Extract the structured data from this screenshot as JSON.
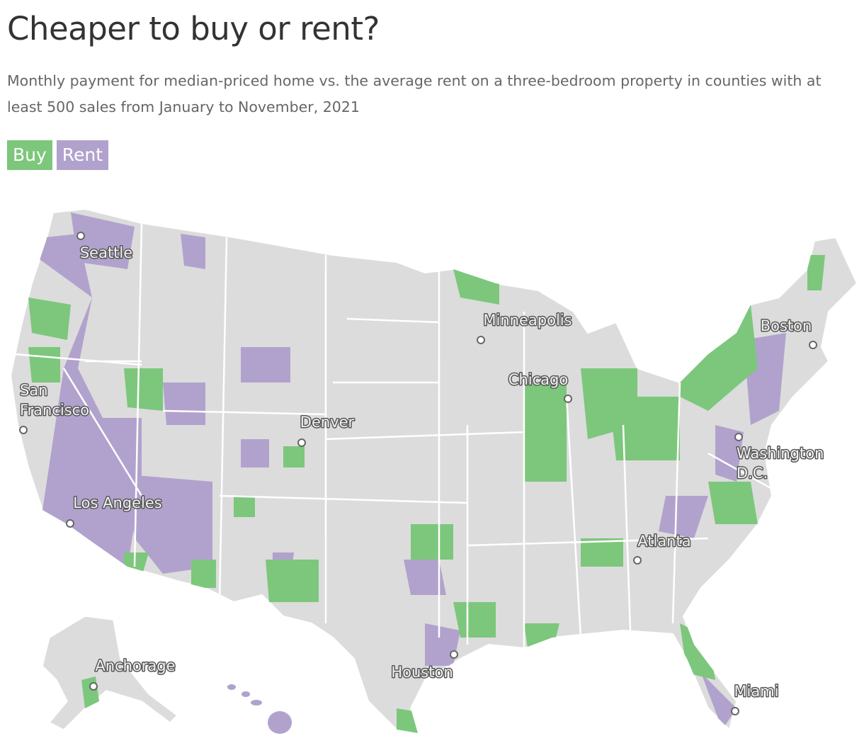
{
  "header": {
    "title": "Cheaper to buy or rent?",
    "subtitle": "Monthly payment for median-priced home vs. the average rent on a three-bedroom property in counties with at least 500 sales from January to November, 2021"
  },
  "legend": [
    {
      "label": "Buy",
      "color": "#7cc77c"
    },
    {
      "label": "Rent",
      "color": "#b1a2cd"
    }
  ],
  "cities": [
    {
      "lines": [
        "Seattle"
      ]
    },
    {
      "lines": [
        "Minneapolis"
      ]
    },
    {
      "lines": [
        "Boston"
      ]
    },
    {
      "lines": [
        "Chicago"
      ]
    },
    {
      "lines": [
        "San",
        "Francisco"
      ]
    },
    {
      "lines": [
        "Denver"
      ]
    },
    {
      "lines": [
        "Washington",
        "D.C."
      ]
    },
    {
      "lines": [
        "Los Angeles"
      ]
    },
    {
      "lines": [
        "Atlanta"
      ]
    },
    {
      "lines": [
        "Houston"
      ]
    },
    {
      "lines": [
        "Anchorage"
      ]
    },
    {
      "lines": [
        "Miami"
      ]
    }
  ]
}
